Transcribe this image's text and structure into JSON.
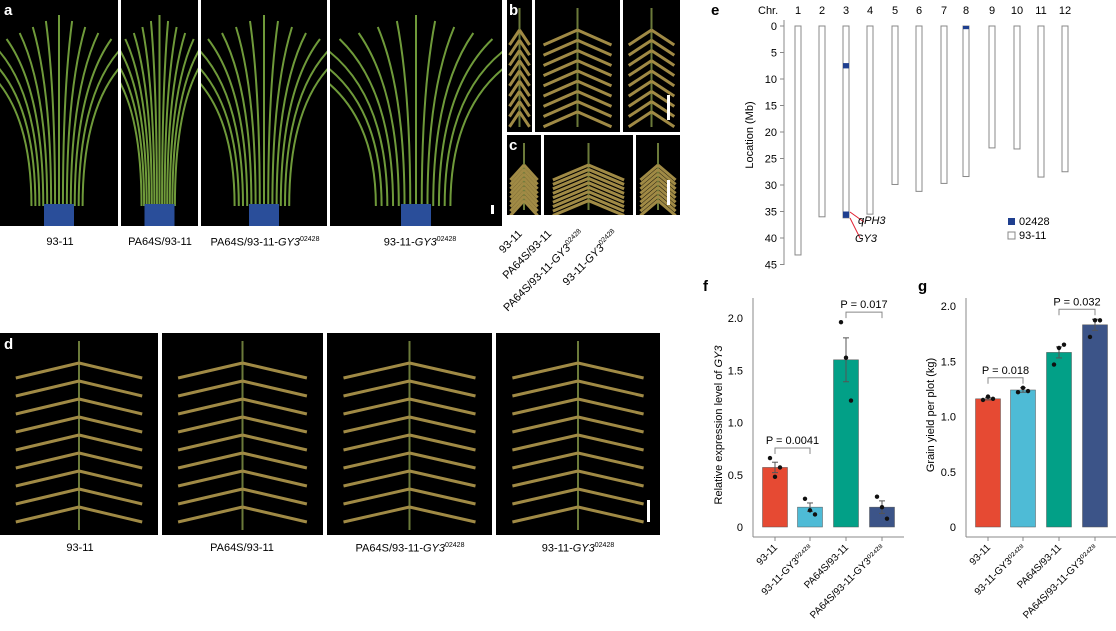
{
  "panels": {
    "a": "a",
    "b": "b",
    "c": "c",
    "d": "d",
    "e": "e",
    "f": "f",
    "g": "g"
  },
  "genotypes": {
    "g1": "93-11",
    "g2": "PA64S/93-11",
    "g3_base": "PA64S/93-11-",
    "g3_gene": "GY3",
    "g3_sup": "02428",
    "g4_base": "93-11-",
    "g4_gene": "GY3",
    "g4_sup": "02428"
  },
  "colors": {
    "red": "#e64a33",
    "lightblue": "#4ebbd6",
    "green": "#02a087",
    "navy": "#3c5488",
    "intro": "#1f3f8f",
    "arrow": "#e02030"
  },
  "chart_data": [
    {
      "panel": "e",
      "type": "diagram",
      "xlabel": "Chr.",
      "ylabel": "Location (Mb)",
      "yticks": [
        0,
        5,
        10,
        15,
        20,
        25,
        30,
        35,
        40,
        45
      ],
      "chromosomes": [
        "1",
        "2",
        "3",
        "4",
        "5",
        "6",
        "7",
        "8",
        "9",
        "10",
        "11",
        "12"
      ],
      "lengths_mb": [
        43.2,
        36.0,
        36.2,
        35.5,
        29.9,
        31.2,
        29.7,
        28.4,
        23.0,
        23.2,
        28.5,
        27.5
      ],
      "introgressions": [
        {
          "chr": "3",
          "start": 7.0,
          "end": 8.0
        },
        {
          "chr": "3",
          "start": 35.0,
          "end": 36.2
        },
        {
          "chr": "8",
          "start": 0.0,
          "end": 0.6
        }
      ],
      "annotations": [
        {
          "text": "qPH3",
          "chr": "3"
        },
        {
          "text": "GY3",
          "chr": "3"
        }
      ],
      "legend": [
        {
          "label": "02428",
          "color": "#1f3f8f"
        },
        {
          "label": "93-11",
          "color": "#ffffff"
        }
      ],
      "legend_placement": "bottom-right"
    },
    {
      "panel": "f",
      "type": "bar",
      "ylabel_base": "Relative expression level of ",
      "ylabel_gene": "GY3",
      "ylim": [
        0,
        2.2
      ],
      "yticks": [
        "0",
        "0.5",
        "1.0",
        "1.5",
        "2.0"
      ],
      "categories": [
        "93-11",
        "93-11-GY3⁰²⁴²⁸",
        "PA64S/93-11",
        "PA64S/93-11-GY3⁰²⁴²⁸"
      ],
      "values": [
        0.57,
        0.19,
        1.6,
        0.19
      ],
      "errors": [
        0.05,
        0.04,
        0.21,
        0.06
      ],
      "points": [
        [
          0.66,
          0.48,
          0.57
        ],
        [
          0.27,
          0.16,
          0.12
        ],
        [
          1.96,
          1.62,
          1.21
        ],
        [
          0.29,
          0.19,
          0.08
        ]
      ],
      "colors": [
        "#e64a33",
        "#4ebbd6",
        "#02a087",
        "#3c5488"
      ],
      "comparisons": [
        {
          "from": 0,
          "to": 1,
          "label": "P = 0.0041"
        },
        {
          "from": 2,
          "to": 3,
          "label": "P = 0.017"
        }
      ]
    },
    {
      "panel": "g",
      "type": "bar",
      "ylabel": "Grain yield per plot (kg)",
      "ylim": [
        0,
        2.0
      ],
      "yticks": [
        "0",
        "0.5",
        "1.0",
        "1.5",
        "2.0"
      ],
      "categories": [
        "93-11",
        "93-11-GY3⁰²⁴²⁸",
        "PA64S/93-11",
        "PA64S/93-11-GY3⁰²⁴²⁸"
      ],
      "values": [
        1.16,
        1.24,
        1.58,
        1.83
      ],
      "errors": [
        0.01,
        0.02,
        0.05,
        0.05
      ],
      "points": [
        [
          1.15,
          1.18,
          1.16
        ],
        [
          1.22,
          1.26,
          1.23
        ],
        [
          1.47,
          1.62,
          1.65
        ],
        [
          1.72,
          1.87,
          1.87
        ]
      ],
      "colors": [
        "#e64a33",
        "#4ebbd6",
        "#02a087",
        "#3c5488"
      ],
      "comparisons": [
        {
          "from": 0,
          "to": 1,
          "label": "P = 0.018"
        },
        {
          "from": 2,
          "to": 3,
          "label": "P = 0.032"
        }
      ]
    }
  ]
}
